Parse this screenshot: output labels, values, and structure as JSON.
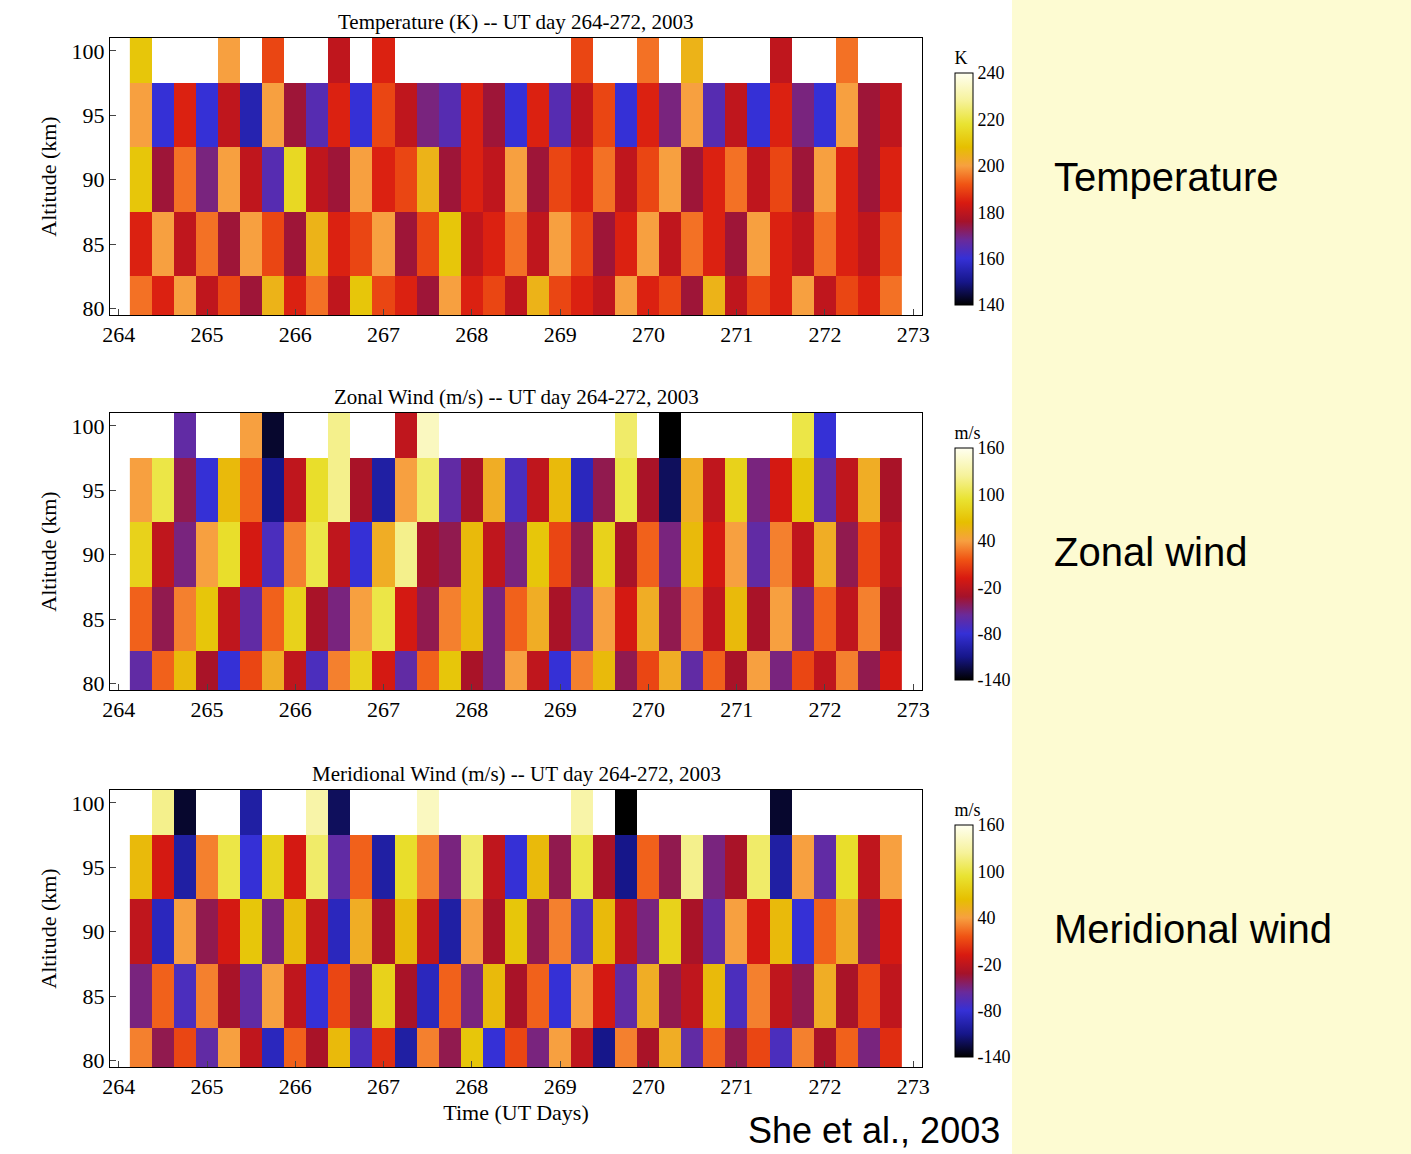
{
  "chart_data": [
    {
      "type": "heatmap",
      "title": "Temperature (K) -- UT day 264-272, 2003",
      "y_label": "Altitude (km)",
      "colorbar_title": "K",
      "zlim": [
        140,
        240
      ],
      "zticks": [
        140,
        160,
        180,
        200,
        220,
        240
      ],
      "xlim": [
        263.9,
        273.1
      ],
      "xticks": [
        264,
        265,
        266,
        267,
        268,
        269,
        270,
        271,
        272,
        273
      ],
      "ylim": [
        79.5,
        101
      ],
      "yticks": [
        80,
        85,
        90,
        95,
        100
      ],
      "annotations": [
        {
          "text": "Temperature",
          "position": "right"
        }
      ],
      "x": [
        264.25,
        264.5,
        264.75,
        265,
        265.25,
        265.5,
        265.75,
        266,
        266.25,
        266.5,
        266.75,
        267,
        267.25,
        267.5,
        267.75,
        268,
        268.25,
        268.5,
        268.75,
        269,
        269.25,
        269.5,
        269.75,
        270,
        270.25,
        270.5,
        270.75,
        271,
        271.25,
        271.5,
        271.75,
        272,
        272.25,
        272.5,
        272.75
      ],
      "y": [
        80,
        85,
        90,
        95,
        100
      ],
      "z": [
        [
          195,
          185,
          200,
          180,
          190,
          175,
          205,
          185,
          195,
          180,
          210,
          190,
          185,
          175,
          200,
          185,
          190,
          180,
          205,
          190,
          185,
          180,
          200,
          185,
          190,
          175,
          205,
          180,
          190,
          185,
          200,
          180,
          190,
          185,
          195
        ],
        [
          185,
          200,
          180,
          195,
          175,
          200,
          190,
          175,
          205,
          185,
          190,
          200,
          175,
          190,
          210,
          180,
          185,
          195,
          180,
          200,
          190,
          175,
          185,
          200,
          180,
          195,
          185,
          175,
          200,
          185,
          180,
          195,
          185,
          180,
          190
        ],
        [
          210,
          175,
          195,
          170,
          200,
          180,
          165,
          215,
          180,
          175,
          200,
          185,
          190,
          205,
          175,
          185,
          180,
          200,
          175,
          190,
          185,
          195,
          180,
          190,
          200,
          175,
          185,
          195,
          180,
          190,
          175,
          200,
          185,
          175,
          185
        ],
        [
          200,
          160,
          185,
          160,
          180,
          155,
          200,
          175,
          165,
          185,
          160,
          190,
          180,
          170,
          165,
          185,
          175,
          160,
          185,
          165,
          180,
          190,
          160,
          185,
          170,
          200,
          165,
          180,
          160,
          185,
          170,
          160,
          200,
          175,
          180
        ],
        [
          210,
          null,
          null,
          null,
          200,
          null,
          190,
          null,
          null,
          180,
          null,
          185,
          null,
          null,
          null,
          null,
          null,
          null,
          null,
          null,
          190,
          null,
          null,
          195,
          null,
          205,
          null,
          null,
          null,
          180,
          null,
          null,
          195,
          null,
          null
        ]
      ]
    },
    {
      "type": "heatmap",
      "title": "Zonal Wind (m/s) -- UT day 264-272, 2003",
      "y_label": "Altitude (km)",
      "colorbar_title": "m/s",
      "zlim": [
        -140,
        160
      ],
      "zticks": [
        -140,
        -80,
        -20,
        40,
        100,
        160
      ],
      "xlim": [
        263.9,
        273.1
      ],
      "xticks": [
        264,
        265,
        266,
        267,
        268,
        269,
        270,
        271,
        272,
        273
      ],
      "ylim": [
        79.5,
        101
      ],
      "yticks": [
        80,
        85,
        90,
        95,
        100
      ],
      "annotations": [
        {
          "text": "Zonal wind",
          "position": "right"
        }
      ],
      "x": [
        264.25,
        264.5,
        264.75,
        265,
        265.25,
        265.5,
        265.75,
        266,
        266.25,
        266.5,
        266.75,
        267,
        267.25,
        267.5,
        267.75,
        268,
        268.25,
        268.5,
        268.75,
        269,
        269.25,
        269.5,
        269.75,
        270,
        270.25,
        270.5,
        270.75,
        271,
        271.25,
        271.5,
        271.75,
        272,
        272.25,
        272.5,
        272.75
      ],
      "y": [
        80,
        85,
        90,
        95,
        100
      ],
      "z": [
        [
          -60,
          20,
          60,
          -30,
          -80,
          10,
          50,
          -20,
          -70,
          30,
          80,
          -10,
          -60,
          20,
          70,
          -30,
          -50,
          40,
          -20,
          -80,
          30,
          60,
          -40,
          10,
          50,
          -60,
          20,
          -30,
          40,
          -50,
          10,
          -20,
          30,
          -40,
          -10
        ],
        [
          20,
          -40,
          30,
          70,
          -20,
          -60,
          20,
          80,
          -30,
          -50,
          40,
          100,
          -10,
          -40,
          30,
          60,
          -50,
          20,
          50,
          -30,
          -60,
          40,
          -10,
          50,
          -40,
          30,
          -20,
          60,
          -30,
          40,
          -50,
          20,
          -20,
          30,
          -30
        ],
        [
          80,
          -20,
          -50,
          40,
          90,
          -10,
          -70,
          30,
          100,
          -20,
          -80,
          50,
          120,
          -30,
          -40,
          60,
          -20,
          -50,
          70,
          10,
          -40,
          80,
          -30,
          20,
          -50,
          60,
          -10,
          40,
          -60,
          30,
          -20,
          50,
          -40,
          10,
          -20
        ],
        [
          40,
          100,
          -40,
          -80,
          60,
          20,
          -110,
          -20,
          90,
          120,
          -30,
          -100,
          40,
          110,
          -60,
          -30,
          50,
          -70,
          -20,
          60,
          -90,
          -40,
          100,
          -30,
          -120,
          50,
          -20,
          80,
          -50,
          -10,
          70,
          -60,
          -20,
          50,
          -30
        ],
        [
          null,
          null,
          -60,
          null,
          null,
          40,
          -130,
          null,
          null,
          120,
          null,
          null,
          -20,
          140,
          null,
          null,
          null,
          null,
          null,
          null,
          null,
          null,
          110,
          null,
          -140,
          null,
          null,
          null,
          null,
          null,
          100,
          -80,
          null,
          null,
          null
        ]
      ]
    },
    {
      "type": "heatmap",
      "title": "Meridional Wind (m/s) -- UT day 264-272, 2003",
      "y_label": "Altitude (km)",
      "x_label": "Time (UT Days)",
      "colorbar_title": "m/s",
      "zlim": [
        -140,
        160
      ],
      "zticks": [
        -140,
        -80,
        -20,
        40,
        100,
        160
      ],
      "xlim": [
        263.9,
        273.1
      ],
      "xticks": [
        264,
        265,
        266,
        267,
        268,
        269,
        270,
        271,
        272,
        273
      ],
      "ylim": [
        79.5,
        101
      ],
      "yticks": [
        80,
        85,
        90,
        95,
        100
      ],
      "annotations": [
        {
          "text": "Meridional wind",
          "position": "right"
        },
        {
          "text": "She et al., 2003",
          "position": "bottom right"
        }
      ],
      "x": [
        264.25,
        264.5,
        264.75,
        265,
        265.25,
        265.5,
        265.75,
        266,
        266.25,
        266.5,
        266.75,
        267,
        267.25,
        267.5,
        267.75,
        268,
        268.25,
        268.5,
        268.75,
        269,
        269.25,
        269.5,
        269.75,
        270,
        270.25,
        270.5,
        270.75,
        271,
        271.25,
        271.5,
        271.75,
        272,
        272.25,
        272.5,
        272.75
      ],
      "y": [
        80,
        85,
        90,
        95,
        100
      ],
      "z": [
        [
          30,
          -40,
          10,
          -60,
          40,
          -20,
          -90,
          20,
          -30,
          60,
          -70,
          0,
          -100,
          30,
          -40,
          70,
          -80,
          10,
          -50,
          40,
          -20,
          -110,
          30,
          -30,
          50,
          -60,
          20,
          -40,
          10,
          -70,
          30,
          -30,
          20,
          -50,
          0
        ],
        [
          -50,
          20,
          -70,
          30,
          -30,
          -60,
          40,
          -20,
          -80,
          10,
          -40,
          80,
          -30,
          -90,
          20,
          -50,
          60,
          -30,
          20,
          -80,
          40,
          -10,
          -60,
          50,
          -40,
          -20,
          60,
          -70,
          30,
          -20,
          -40,
          50,
          -30,
          10,
          -20
        ],
        [
          -20,
          -90,
          40,
          -40,
          -10,
          70,
          -50,
          60,
          -20,
          -90,
          50,
          -30,
          60,
          -20,
          -100,
          40,
          -30,
          70,
          -40,
          30,
          -70,
          60,
          -20,
          -50,
          80,
          -30,
          -60,
          40,
          -10,
          60,
          -80,
          20,
          50,
          -40,
          -10
        ],
        [
          60,
          -10,
          -100,
          30,
          100,
          -80,
          80,
          -10,
          110,
          -60,
          20,
          -100,
          90,
          30,
          -50,
          110,
          -20,
          -80,
          60,
          -40,
          100,
          -30,
          -110,
          20,
          -40,
          120,
          -50,
          -30,
          110,
          -100,
          40,
          -60,
          90,
          -20,
          40
        ],
        [
          null,
          120,
          -130,
          null,
          null,
          -100,
          null,
          null,
          130,
          -120,
          null,
          null,
          null,
          140,
          null,
          null,
          null,
          null,
          null,
          null,
          130,
          null,
          -140,
          null,
          null,
          null,
          null,
          null,
          null,
          -130,
          null,
          null,
          null,
          null,
          null
        ]
      ]
    }
  ]
}
